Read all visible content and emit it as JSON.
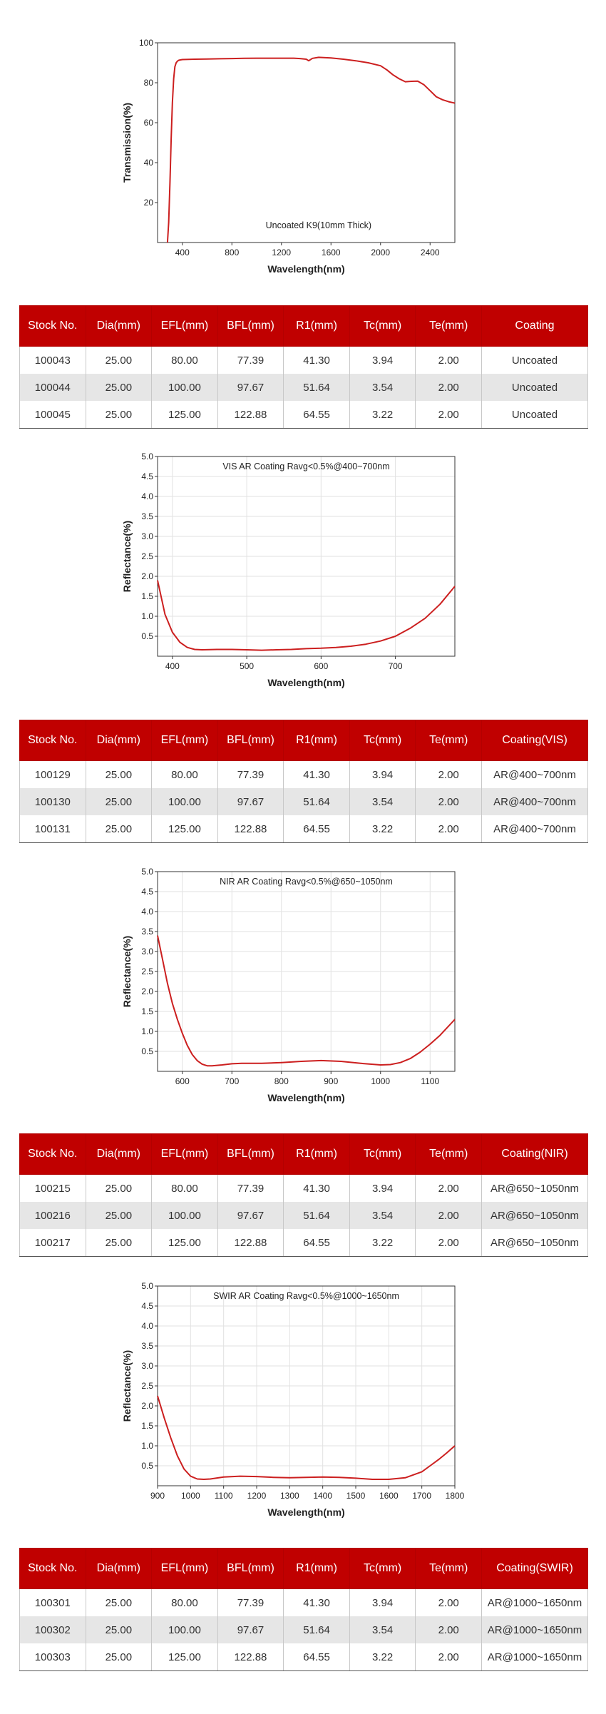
{
  "chart_data": [
    {
      "type": "line",
      "annotation": "Uncoated K9(10mm Thick)",
      "xlabel": "Wavelength(nm)",
      "ylabel": "Transmission(%)",
      "xlim": [
        200,
        2600
      ],
      "ylim": [
        0,
        100
      ],
      "xticks": [
        400,
        800,
        1200,
        1600,
        2000,
        2400
      ],
      "yticks": [
        20,
        40,
        60,
        80,
        100
      ],
      "grid": false,
      "color": "#cc1f1f",
      "series": [
        {
          "x": [
            280,
            290,
            300,
            310,
            320,
            330,
            340,
            350,
            360,
            370,
            380,
            400,
            450,
            500,
            600,
            700,
            800,
            900,
            1000,
            1100,
            1200,
            1300,
            1350,
            1400,
            1420,
            1450,
            1500,
            1600,
            1700,
            1800,
            1900,
            2000,
            2050,
            2100,
            2150,
            2200,
            2250,
            2300,
            2350,
            2400,
            2450,
            2500,
            2550,
            2600
          ],
          "y": [
            0,
            10,
            30,
            52,
            70,
            82,
            88,
            90,
            90.8,
            91.2,
            91.4,
            91.6,
            91.7,
            91.8,
            91.9,
            92.0,
            92.1,
            92.2,
            92.3,
            92.3,
            92.3,
            92.3,
            92.1,
            91.8,
            91.0,
            92.2,
            92.7,
            92.4,
            91.8,
            91.0,
            90.0,
            88.5,
            86.5,
            84.0,
            82.0,
            80.5,
            80.7,
            80.8,
            79.0,
            76.0,
            73.0,
            71.5,
            70.5,
            69.8
          ]
        }
      ]
    },
    {
      "type": "line",
      "annotation": "VIS AR Coating Ravg<0.5%@400~700nm",
      "xlabel": "Wavelength(nm)",
      "ylabel": "Reflectance(%)",
      "xlim": [
        380,
        780
      ],
      "ylim": [
        0,
        5
      ],
      "xticks": [
        400,
        500,
        600,
        700
      ],
      "yticks": [
        "0.5",
        "1.0",
        "1.5",
        "2.0",
        "2.5",
        "3.0",
        "3.5",
        "4.0",
        "4.5",
        "5.0"
      ],
      "grid": true,
      "color": "#cc1f1f",
      "series": [
        {
          "x": [
            380,
            390,
            400,
            410,
            420,
            430,
            440,
            460,
            480,
            500,
            520,
            540,
            560,
            580,
            600,
            620,
            640,
            660,
            680,
            700,
            720,
            740,
            760,
            780
          ],
          "y": [
            1.9,
            1.05,
            0.6,
            0.35,
            0.22,
            0.17,
            0.16,
            0.17,
            0.17,
            0.16,
            0.15,
            0.16,
            0.17,
            0.19,
            0.2,
            0.22,
            0.25,
            0.3,
            0.38,
            0.5,
            0.7,
            0.95,
            1.3,
            1.75
          ]
        }
      ]
    },
    {
      "type": "line",
      "annotation": "NIR AR Coating Ravg<0.5%@650~1050nm",
      "xlabel": "Wavelength(nm)",
      "ylabel": "Reflectance(%)",
      "xlim": [
        550,
        1150
      ],
      "ylim": [
        0,
        5
      ],
      "xticks": [
        600,
        700,
        800,
        900,
        1000,
        1100
      ],
      "yticks": [
        "0.5",
        "1.0",
        "1.5",
        "2.0",
        "2.5",
        "3.0",
        "3.5",
        "4.0",
        "4.5",
        "5.0"
      ],
      "grid": true,
      "color": "#cc1f1f",
      "series": [
        {
          "x": [
            550,
            560,
            570,
            580,
            590,
            600,
            610,
            620,
            630,
            640,
            650,
            660,
            680,
            700,
            720,
            760,
            800,
            840,
            880,
            920,
            960,
            1000,
            1020,
            1040,
            1060,
            1080,
            1100,
            1120,
            1150
          ],
          "y": [
            3.4,
            2.8,
            2.2,
            1.7,
            1.3,
            0.95,
            0.65,
            0.42,
            0.27,
            0.18,
            0.14,
            0.14,
            0.16,
            0.19,
            0.2,
            0.2,
            0.22,
            0.25,
            0.27,
            0.25,
            0.2,
            0.16,
            0.17,
            0.22,
            0.32,
            0.48,
            0.68,
            0.9,
            1.3
          ]
        }
      ]
    },
    {
      "type": "line",
      "annotation": "SWIR AR Coating Ravg<0.5%@1000~1650nm",
      "xlabel": "Wavelength(nm)",
      "ylabel": "Reflectance(%)",
      "xlim": [
        900,
        1800
      ],
      "ylim": [
        0,
        5
      ],
      "xticks": [
        900,
        1000,
        1100,
        1200,
        1300,
        1400,
        1500,
        1600,
        1700,
        1800
      ],
      "yticks": [
        "0.5",
        "1.0",
        "1.5",
        "2.0",
        "2.5",
        "3.0",
        "3.5",
        "4.0",
        "4.5",
        "5.0"
      ],
      "grid": true,
      "color": "#cc1f1f",
      "series": [
        {
          "x": [
            900,
            920,
            940,
            960,
            980,
            1000,
            1020,
            1040,
            1060,
            1100,
            1150,
            1200,
            1250,
            1300,
            1350,
            1400,
            1450,
            1500,
            1550,
            1600,
            1650,
            1700,
            1725,
            1750,
            1775,
            1800
          ],
          "y": [
            2.25,
            1.7,
            1.2,
            0.75,
            0.42,
            0.24,
            0.17,
            0.16,
            0.17,
            0.22,
            0.24,
            0.23,
            0.21,
            0.2,
            0.21,
            0.22,
            0.21,
            0.19,
            0.16,
            0.16,
            0.2,
            0.35,
            0.5,
            0.65,
            0.82,
            1.0
          ]
        }
      ]
    }
  ],
  "tables": [
    {
      "headers": [
        "Stock No.",
        "Dia(mm)",
        "EFL(mm)",
        "BFL(mm)",
        "R1(mm)",
        "Tc(mm)",
        "Te(mm)",
        "Coating"
      ],
      "rows": [
        [
          "100043",
          "25.00",
          "80.00",
          "77.39",
          "41.30",
          "3.94",
          "2.00",
          "Uncoated"
        ],
        [
          "100044",
          "25.00",
          "100.00",
          "97.67",
          "51.64",
          "3.54",
          "2.00",
          "Uncoated"
        ],
        [
          "100045",
          "25.00",
          "125.00",
          "122.88",
          "64.55",
          "3.22",
          "2.00",
          "Uncoated"
        ]
      ]
    },
    {
      "headers": [
        "Stock No.",
        "Dia(mm)",
        "EFL(mm)",
        "BFL(mm)",
        "R1(mm)",
        "Tc(mm)",
        "Te(mm)",
        "Coating(VIS)"
      ],
      "rows": [
        [
          "100129",
          "25.00",
          "80.00",
          "77.39",
          "41.30",
          "3.94",
          "2.00",
          "AR@400~700nm"
        ],
        [
          "100130",
          "25.00",
          "100.00",
          "97.67",
          "51.64",
          "3.54",
          "2.00",
          "AR@400~700nm"
        ],
        [
          "100131",
          "25.00",
          "125.00",
          "122.88",
          "64.55",
          "3.22",
          "2.00",
          "AR@400~700nm"
        ]
      ]
    },
    {
      "headers": [
        "Stock No.",
        "Dia(mm)",
        "EFL(mm)",
        "BFL(mm)",
        "R1(mm)",
        "Tc(mm)",
        "Te(mm)",
        "Coating(NIR)"
      ],
      "rows": [
        [
          "100215",
          "25.00",
          "80.00",
          "77.39",
          "41.30",
          "3.94",
          "2.00",
          "AR@650~1050nm"
        ],
        [
          "100216",
          "25.00",
          "100.00",
          "97.67",
          "51.64",
          "3.54",
          "2.00",
          "AR@650~1050nm"
        ],
        [
          "100217",
          "25.00",
          "125.00",
          "122.88",
          "64.55",
          "3.22",
          "2.00",
          "AR@650~1050nm"
        ]
      ]
    },
    {
      "headers": [
        "Stock No.",
        "Dia(mm)",
        "EFL(mm)",
        "BFL(mm)",
        "R1(mm)",
        "Tc(mm)",
        "Te(mm)",
        "Coating(SWIR)"
      ],
      "rows": [
        [
          "100301",
          "25.00",
          "80.00",
          "77.39",
          "41.30",
          "3.94",
          "2.00",
          "AR@1000~1650nm"
        ],
        [
          "100302",
          "25.00",
          "100.00",
          "97.67",
          "51.64",
          "3.54",
          "2.00",
          "AR@1000~1650nm"
        ],
        [
          "100303",
          "25.00",
          "125.00",
          "122.88",
          "64.55",
          "3.22",
          "2.00",
          "AR@1000~1650nm"
        ]
      ]
    }
  ]
}
